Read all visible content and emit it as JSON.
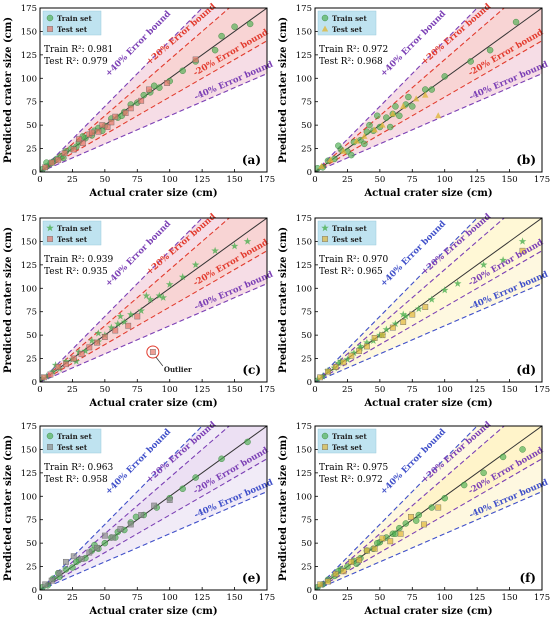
{
  "figure": {
    "common": {
      "xlabel": "Actual crater size  (cm)",
      "ylabel": "Predicted crater size (cm)",
      "ticks": [
        0,
        25,
        50,
        75,
        100,
        125,
        150,
        175
      ],
      "xlim": [
        0,
        175
      ],
      "ylim": [
        0,
        175
      ],
      "bound_labels": {
        "p40": "+40% Error bound",
        "p20": "+20% Error bound",
        "m20": "-20% Error bound",
        "m40": "-40% Error bound"
      },
      "legend": {
        "train": "Train set",
        "test": "Test set"
      }
    }
  },
  "chart_data": [
    {
      "panel": "(a)",
      "type": "scatter",
      "train_r2": "Train R²: 0.981",
      "test_r2": "Test R²: 0.979",
      "colors": {
        "train": "#4caf50",
        "test": "#e4766a",
        "p40": "#7b3fb5",
        "p20": "#e23b2e",
        "m20": "#e23b2e",
        "m40": "#7b3fb5",
        "band20": "#f6c5c5",
        "band40": "#f3d2dd"
      },
      "markers": {
        "train": "circle",
        "test": "square"
      },
      "series": [
        {
          "name": "Train set",
          "x": [
            2,
            5,
            8,
            10,
            13,
            16,
            20,
            24,
            28,
            30,
            35,
            40,
            42,
            45,
            50,
            55,
            60,
            65,
            70,
            75,
            80,
            85,
            92,
            100,
            110,
            120,
            135,
            140,
            150,
            162,
            5,
            18,
            33,
            48,
            63,
            88
          ],
          "y": [
            3,
            6,
            9,
            11,
            14,
            17,
            22,
            25,
            27,
            32,
            36,
            39,
            44,
            47,
            49,
            57,
            58,
            64,
            72,
            74,
            82,
            85,
            90,
            97,
            108,
            118,
            130,
            145,
            155,
            158,
            10,
            15,
            38,
            44,
            60,
            92
          ]
        },
        {
          "name": "Test set",
          "x": [
            4,
            9,
            14,
            19,
            26,
            33,
            38,
            45,
            52,
            58,
            66,
            78,
            84,
            98,
            120,
            48,
            40,
            55,
            30,
            70
          ],
          "y": [
            5,
            10,
            13,
            20,
            24,
            31,
            40,
            43,
            48,
            59,
            63,
            76,
            88,
            95,
            120,
            50,
            42,
            53,
            35,
            68
          ]
        }
      ]
    },
    {
      "panel": "(b)",
      "type": "scatter",
      "train_r2": "Train R²: 0.972",
      "test_r2": "Test R²: 0.968",
      "colors": {
        "train": "#4caf50",
        "test": "#e0b63c",
        "p40": "#7b3fb5",
        "p20": "#e23b2e",
        "m20": "#e23b2e",
        "m40": "#7b3fb5",
        "band20": "#f6c5c5",
        "band40": "#f3d2dd"
      },
      "markers": {
        "train": "circle",
        "test": "triangle"
      },
      "series": [
        {
          "name": "Train set",
          "x": [
            2,
            6,
            10,
            15,
            20,
            25,
            30,
            35,
            40,
            45,
            50,
            55,
            60,
            65,
            70,
            75,
            85,
            90,
            100,
            120,
            135,
            155,
            18,
            28,
            42,
            58,
            72,
            48,
            38,
            62
          ],
          "y": [
            4,
            5,
            12,
            14,
            24,
            22,
            32,
            34,
            43,
            44,
            48,
            58,
            62,
            60,
            72,
            70,
            88,
            88,
            102,
            118,
            130,
            160,
            28,
            18,
            50,
            48,
            80,
            60,
            30,
            70
          ]
        },
        {
          "name": "Test set",
          "x": [
            5,
            12,
            22,
            32,
            38,
            46,
            52,
            60,
            68,
            78,
            85,
            95
          ],
          "y": [
            6,
            13,
            22,
            33,
            38,
            45,
            50,
            62,
            70,
            78,
            82,
            60
          ]
        }
      ]
    },
    {
      "panel": "(c)",
      "type": "scatter",
      "train_r2": "Train R²: 0.939",
      "test_r2": "Test R²: 0.935",
      "annotation": "Outlier",
      "colors": {
        "train": "#4caf50",
        "test": "#e4766a",
        "p40": "#7b3fb5",
        "p20": "#e23b2e",
        "m20": "#e23b2e",
        "m40": "#7b3fb5",
        "band20": "#f6c5c5",
        "band40": "#f3d2dd"
      },
      "markers": {
        "train": "star",
        "test": "square"
      },
      "series": [
        {
          "name": "Train set",
          "x": [
            2,
            5,
            10,
            15,
            20,
            25,
            30,
            35,
            40,
            45,
            50,
            55,
            60,
            65,
            70,
            78,
            85,
            92,
            100,
            110,
            120,
            135,
            150,
            160,
            12,
            28,
            45,
            62,
            82,
            95
          ],
          "y": [
            4,
            6,
            11,
            14,
            22,
            24,
            32,
            33,
            44,
            43,
            50,
            58,
            62,
            64,
            72,
            76,
            88,
            92,
            104,
            112,
            125,
            140,
            145,
            150,
            18,
            22,
            52,
            70,
            92,
            90
          ]
        },
        {
          "name": "Test set",
          "x": [
            3,
            8,
            14,
            20,
            26,
            32,
            38,
            44,
            50,
            58,
            68,
            75,
            87
          ],
          "y": [
            5,
            8,
            16,
            19,
            25,
            30,
            37,
            42,
            48,
            55,
            60,
            70,
            32
          ]
        }
      ]
    },
    {
      "panel": "(d)",
      "type": "scatter",
      "train_r2": "Train R²: 0.970",
      "test_r2": "Test R²: 0.965",
      "colors": {
        "train": "#4caf50",
        "test": "#e0b63c",
        "p40": "#3f4fc9",
        "p20": "#7b3fb5",
        "m20": "#7b3fb5",
        "m40": "#3f4fc9",
        "band20": "#fff6c8",
        "band40": "#fdf6d6"
      },
      "markers": {
        "train": "star",
        "test": "square"
      },
      "series": [
        {
          "name": "Train set",
          "x": [
            2,
            6,
            10,
            15,
            20,
            25,
            30,
            35,
            40,
            45,
            50,
            55,
            62,
            70,
            80,
            90,
            100,
            110,
            130,
            145,
            160,
            18,
            35,
            52,
            68
          ],
          "y": [
            3,
            6,
            12,
            15,
            22,
            24,
            31,
            36,
            42,
            44,
            50,
            56,
            62,
            70,
            78,
            88,
            98,
            105,
            125,
            130,
            150,
            20,
            38,
            50,
            72
          ]
        },
        {
          "name": "Test set",
          "x": [
            4,
            10,
            16,
            22,
            28,
            34,
            40,
            46,
            52,
            60,
            68,
            75,
            85,
            160
          ],
          "y": [
            5,
            11,
            16,
            21,
            28,
            33,
            38,
            47,
            50,
            58,
            64,
            72,
            80,
            140
          ]
        }
      ]
    },
    {
      "panel": "(e)",
      "type": "scatter",
      "train_r2": "Train R²: 0.963",
      "test_r2": "Test R²: 0.958",
      "colors": {
        "train": "#4caf50",
        "test": "#8a8a8a",
        "p40": "#3f4fc9",
        "p20": "#7b3fb5",
        "m20": "#7b3fb5",
        "m40": "#3f4fc9",
        "band20": "#e6d5ef",
        "band40": "#ece4f4"
      },
      "markers": {
        "train": "circle",
        "test": "square"
      },
      "series": [
        {
          "name": "Train set",
          "x": [
            2,
            6,
            10,
            15,
            20,
            25,
            30,
            35,
            40,
            45,
            50,
            55,
            60,
            65,
            70,
            80,
            90,
            100,
            110,
            120,
            140,
            160,
            14,
            28,
            42,
            58,
            74
          ],
          "y": [
            3,
            5,
            12,
            14,
            22,
            24,
            32,
            34,
            42,
            44,
            50,
            56,
            62,
            64,
            72,
            80,
            88,
            98,
            108,
            120,
            140,
            158,
            18,
            30,
            48,
            56,
            78
          ]
        },
        {
          "name": "Test set",
          "x": [
            4,
            9,
            15,
            20,
            26,
            32,
            38,
            44,
            50,
            56,
            62,
            70,
            78,
            88,
            100
          ],
          "y": [
            6,
            10,
            18,
            30,
            36,
            33,
            40,
            45,
            58,
            56,
            65,
            70,
            80,
            90,
            96
          ]
        }
      ]
    },
    {
      "panel": "(f)",
      "type": "scatter",
      "train_r2": "Train R²: 0.975",
      "test_r2": "Test R²: 0.972",
      "colors": {
        "train": "#4caf50",
        "test": "#e0b63c",
        "p40": "#3f4fc9",
        "p20": "#7b3fb5",
        "m20": "#7b3fb5",
        "m40": "#3f4fc9",
        "band20": "#fff0b8",
        "band40": "#fdf6d6"
      },
      "markers": {
        "train": "circle",
        "test": "square"
      },
      "series": [
        {
          "name": "Train set",
          "x": [
            2,
            6,
            10,
            15,
            20,
            25,
            30,
            35,
            40,
            45,
            50,
            55,
            60,
            65,
            70,
            80,
            90,
            100,
            115,
            130,
            145,
            160,
            18,
            32,
            48,
            62,
            78
          ],
          "y": [
            3,
            6,
            11,
            15,
            22,
            25,
            31,
            34,
            42,
            44,
            51,
            56,
            60,
            66,
            71,
            80,
            88,
            98,
            112,
            125,
            142,
            150,
            20,
            28,
            50,
            60,
            74
          ]
        },
        {
          "name": "Test set",
          "x": [
            4,
            10,
            16,
            22,
            28,
            34,
            40,
            46,
            52,
            58,
            66,
            74,
            84,
            95
          ],
          "y": [
            6,
            9,
            17,
            20,
            30,
            32,
            42,
            44,
            55,
            52,
            60,
            78,
            70,
            88
          ]
        }
      ]
    }
  ]
}
